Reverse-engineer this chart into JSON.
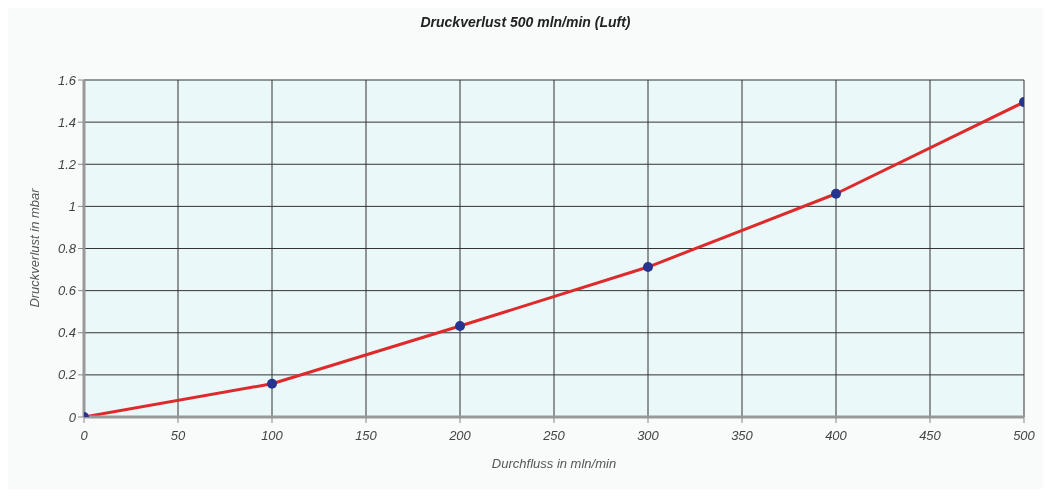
{
  "chart_data": {
    "type": "line",
    "title": "Druckverlust 500 mln/min (Luft)",
    "xlabel": "Durchfluss in mln/min",
    "ylabel": "Druckverlust in mbar",
    "x": [
      0,
      100,
      200,
      300,
      400,
      500
    ],
    "series": [
      {
        "color": "#dd2a2a",
        "values": [
          0,
          0.158,
          0.432,
          0.712,
          1.06,
          1.495
        ],
        "marker": "none"
      },
      {
        "type": "scatter",
        "color": "#26348f",
        "values": [
          0,
          0.158,
          0.432,
          0.712,
          1.06,
          1.495
        ],
        "marker": "circle"
      }
    ],
    "xlim": [
      0,
      500
    ],
    "xticks": [
      0,
      50,
      100,
      150,
      200,
      250,
      300,
      350,
      400,
      450,
      500
    ],
    "ylim": [
      0,
      1.6
    ],
    "yticks": [
      0,
      0.2,
      0.4,
      0.6,
      0.8,
      1,
      1.2,
      1.4,
      1.6
    ],
    "grid": true,
    "line_style": "solid"
  }
}
